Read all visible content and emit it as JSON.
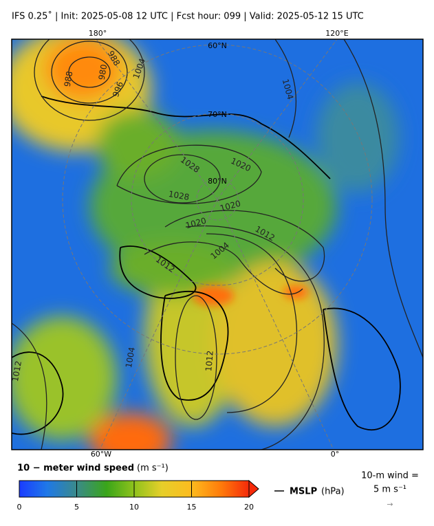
{
  "header": {
    "title": "IFS 0.25˚  |  Init: 2025-05-08 12 UTC  |  Fcst hour: 099  |  Valid: 2025-05-12 15 UTC"
  },
  "map": {
    "lon_labels": [
      "180°",
      "120°E",
      "60°W",
      "0°"
    ],
    "lat_labels": [
      "60°N",
      "70°N",
      "80°N"
    ],
    "isobar_labels": [
      "988",
      "980",
      "988",
      "996",
      "1004",
      "1004",
      "1028",
      "1020",
      "1028",
      "1020",
      "1020",
      "1012",
      "1004",
      "1012",
      "1012",
      "1004",
      "1012"
    ]
  },
  "colorbar": {
    "label": "10 − meter wind speed",
    "unit": "(m s⁻¹)",
    "range": [
      0,
      20
    ],
    "ticks": [
      0,
      5,
      10,
      15,
      20
    ]
  },
  "legend": {
    "mslp": "MSLP",
    "mslp_unit": "(hPa)",
    "wind_ref": "10-m wind =",
    "wind_ref_value": "5 m s⁻¹",
    "wind_ref_arrow": "→"
  }
}
